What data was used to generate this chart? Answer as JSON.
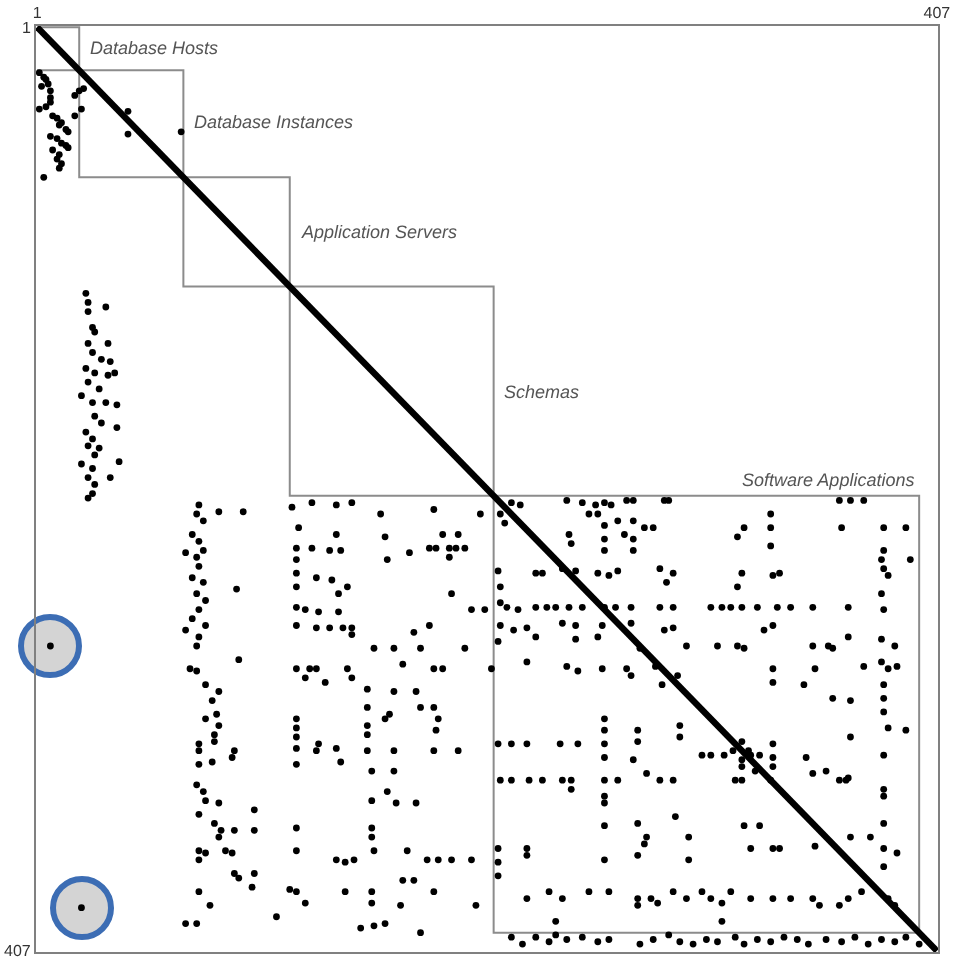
{
  "chart_data": {
    "type": "scatter",
    "marker": "circle",
    "xlim": [
      0.5,
      407.5
    ],
    "ylim": [
      407.5,
      0.5
    ],
    "xticks": [
      1,
      407
    ],
    "yticks": [
      1,
      407
    ],
    "annotations": [
      {
        "text": "Database Hosts",
        "x": 20,
        "y": 10
      },
      {
        "text": "Database Instances",
        "x": 67,
        "y": 43
      },
      {
        "text": "Application Servers",
        "x": 115,
        "y": 91
      },
      {
        "text": "Schemas",
        "x": 207,
        "y": 161
      },
      {
        "text": "Software Applications",
        "x": 399,
        "y": 207
      }
    ],
    "series": [
      {
        "type": "step",
        "marker": "none",
        "color": "#8c8c8c",
        "x": [
          1,
          20,
          67,
          115,
          207,
          399
        ],
        "values": [
          1,
          20,
          67,
          115,
          207,
          399
        ]
      },
      {
        "type": "step",
        "marker": "none",
        "color": "#8c8c8c",
        "x": [
          1,
          20,
          67,
          115,
          207,
          399
        ],
        "values": [
          20,
          67,
          115,
          207,
          399,
          399
        ]
      },
      {
        "type": "line",
        "marker": "none",
        "color": "#000000",
        "x": [
          1,
          407
        ],
        "values": [
          1,
          407
        ]
      },
      {
        "color": "#000000",
        "x": [
          2,
          4,
          5,
          3,
          6,
          7,
          7,
          2,
          5,
          7,
          8,
          10,
          11,
          12,
          14,
          15,
          7,
          10,
          12,
          14,
          15,
          8,
          11,
          10,
          12,
          11,
          4,
          18,
          20,
          22,
          18,
          21,
          42,
          42,
          66,
          23,
          24,
          24,
          32,
          26,
          27,
          24,
          26,
          33,
          30,
          34,
          23,
          27,
          33,
          36,
          24,
          29,
          21,
          26,
          32,
          37,
          27,
          30,
          37,
          23,
          26,
          24,
          29,
          27,
          21,
          26,
          38,
          24,
          27,
          34,
          24,
          26,
          7,
          21
        ],
        "values": [
          21,
          23,
          24,
          27,
          26,
          29,
          32,
          37,
          36,
          34,
          40,
          41,
          44,
          43,
          46,
          47,
          49,
          50,
          52,
          53,
          54,
          55,
          57,
          59,
          61,
          63,
          67,
          31,
          29,
          28,
          40,
          37,
          38,
          48,
          47,
          118,
          122,
          126,
          124,
          133,
          135,
          140,
          144,
          140,
          147,
          148,
          151,
          153,
          154,
          153,
          157,
          160,
          163,
          166,
          166,
          167,
          172,
          175,
          177,
          179,
          182,
          185,
          186,
          189,
          193,
          195,
          192,
          199,
          202,
          199,
          208,
          206,
          273,
          388
        ]
      },
      {
        "color": "#000000",
        "x": [
          74,
          73,
          76,
          71,
          74,
          68,
          73,
          76,
          74,
          71,
          76,
          73,
          77,
          74,
          71,
          68,
          77,
          74,
          73,
          83,
          94,
          91,
          70,
          73,
          77,
          83,
          80,
          77,
          82,
          83,
          81,
          81,
          74,
          74,
          80,
          89,
          90,
          74,
          73,
          76,
          77,
          83,
          74,
          81,
          84,
          83,
          74,
          77,
          86,
          89,
          74,
          90,
          92,
          99,
          99,
          99,
          98,
          74,
          79,
          68,
          73,
          92,
          90
        ],
        "values": [
          211,
          215,
          218,
          224,
          227,
          232,
          234,
          231,
          238,
          243,
          245,
          250,
          253,
          257,
          261,
          266,
          264,
          269,
          273,
          214,
          214,
          248,
          283,
          284,
          290,
          293,
          297,
          305,
          303,
          308,
          312,
          315,
          316,
          319,
          324,
          322,
          319,
          325,
          334,
          337,
          341,
          342,
          347,
          351,
          354,
          357,
          363,
          364,
          363,
          364,
          367,
          373,
          375,
          373,
          345,
          354,
          379,
          381,
          387,
          395,
          395,
          279,
          354
        ]
      },
      {
        "color": "#000000",
        "x": [
          116,
          125,
          136,
          143,
          156,
          180,
          119,
          118,
          125,
          133,
          138,
          136,
          118,
          118,
          127,
          134,
          137,
          141,
          118,
          118,
          122,
          128,
          137,
          118,
          127,
          133,
          139,
          143,
          158,
          159,
          169,
          178,
          184,
          191,
          194,
          187,
          188,
          171,
          178,
          153,
          162,
          174,
          194,
          197,
          143,
          181,
          187,
          190,
          118,
          124,
          122,
          127,
          141,
          143,
          131,
          166,
          180,
          184,
          118,
          118,
          118,
          118,
          118,
          127,
          128,
          136,
          138,
          150,
          150,
          150,
          150,
          158,
          160,
          162,
          174,
          180,
          182,
          172,
          162,
          150,
          181,
          180,
          191,
          152,
          162,
          159,
          163,
          172,
          152,
          118,
          118,
          136,
          140,
          144,
          152,
          152,
          153,
          168,
          177,
          182,
          188,
          166,
          171,
          180,
          115,
          118,
          109,
          140,
          152,
          152,
          165,
          147,
          153,
          158,
          174,
          199,
          197,
          122,
          201,
          203,
          206
        ],
        "values": [
          212,
          210,
          211,
          210,
          215,
          213,
          221,
          230,
          230,
          231,
          231,
          224,
          235,
          241,
          243,
          244,
          250,
          247,
          247,
          256,
          257,
          258,
          258,
          264,
          265,
          265,
          265,
          265,
          225,
          235,
          232,
          230,
          224,
          224,
          230,
          234,
          250,
          267,
          264,
          274,
          274,
          274,
          274,
          257,
          268,
          230,
          230,
          230,
          283,
          283,
          287,
          283,
          283,
          287,
          289,
          281,
          283,
          283,
          305,
          309,
          313,
          318,
          325,
          319,
          316,
          318,
          324,
          300,
          308,
          312,
          319,
          305,
          303,
          319,
          300,
          300,
          305,
          293,
          293,
          292,
          310,
          319,
          319,
          328,
          328,
          337,
          342,
          342,
          341,
          353,
          363,
          367,
          368,
          367,
          353,
          357,
          363,
          363,
          367,
          367,
          367,
          376,
          376,
          381,
          380,
          381,
          392,
          381,
          381,
          386,
          387,
          397,
          396,
          395,
          399,
          387,
          367,
          386,
          215,
          257,
          283
        ]
      },
      {
        "color": "#000000",
        "x": [
          215,
          219,
          240,
          247,
          253,
          257,
          260,
          267,
          270,
          284,
          286,
          363,
          368,
          374,
          210,
          212,
          250,
          254,
          263,
          270,
          257,
          275,
          279,
          241,
          242,
          257,
          257,
          270,
          270,
          266,
          320,
          317,
          332,
          332,
          332,
          364,
          383,
          393,
          383,
          382,
          395,
          209,
          226,
          229,
          238,
          244,
          254,
          259,
          263,
          282,
          288,
          285,
          319,
          317,
          333,
          336,
          383,
          385,
          382,
          210,
          210,
          213,
          218,
          226,
          231,
          235,
          241,
          247,
          257,
          262,
          269,
          282,
          288,
          305,
          310,
          314,
          319,
          326,
          335,
          341,
          351,
          367,
          383,
          210,
          216,
          222,
          238,
          244,
          256,
          269,
          284,
          288,
          329,
          333,
          209,
          226,
          244,
          254,
          273,
          294,
          308,
          317,
          351,
          358,
          367,
          382,
          388
        ],
        "values": [
          210,
          211,
          209,
          210,
          211,
          210,
          211,
          209,
          209,
          209,
          209,
          209,
          209,
          209,
          215,
          219,
          215,
          215,
          218,
          218,
          220,
          221,
          221,
          224,
          228,
          226,
          231,
          226,
          231,
          224,
          221,
          225,
          215,
          221,
          229,
          221,
          221,
          221,
          231,
          235,
          235,
          240,
          241,
          241,
          239,
          240,
          241,
          242,
          240,
          239,
          241,
          245,
          241,
          247,
          242,
          241,
          239,
          242,
          250,
          247,
          254,
          256,
          257,
          256,
          256,
          256,
          256,
          256,
          256,
          256,
          256,
          256,
          256,
          256,
          256,
          256,
          256,
          256,
          256,
          256,
          256,
          256,
          257,
          264,
          266,
          265,
          263,
          264,
          264,
          263,
          266,
          265,
          266,
          264,
          271,
          269,
          270,
          269,
          274,
          273,
          273,
          273,
          273,
          273,
          269,
          270,
          273
        ]
      },
      {
        "color": "#000000",
        "x": [
          222,
          240,
          245,
          256,
          267,
          269,
          320,
          333,
          333,
          347,
          360,
          352,
          374,
          382,
          385,
          389,
          383,
          383,
          383,
          385,
          393,
          383,
          383,
          383,
          360,
          368,
          368,
          357,
          363,
          367,
          209,
          215,
          222,
          237,
          245,
          257,
          257,
          257,
          257,
          272,
          272,
          270,
          291,
          291,
          301,
          305,
          311,
          323,
          327,
          333,
          333,
          333,
          319,
          325,
          348,
          351,
          210,
          215,
          223,
          229,
          238,
          242,
          242,
          257,
          257,
          257,
          263,
          276,
          282,
          288,
          316,
          319,
          332,
          366,
          257,
          272,
          276,
          275,
          272,
          257,
          222,
          222,
          209,
          209,
          209,
          289,
          295,
          295,
          320,
          327,
          323,
          333,
          336,
          352,
          368,
          377,
          383,
          383,
          389,
          383,
          222,
          232,
          238,
          250,
          259,
          272,
          272,
          278,
          281,
          288,
          294,
          301,
          305,
          310,
          314,
          323,
          333,
          341,
          351,
          354,
          363,
          367,
          373,
          385,
          388,
          235,
          310,
          280,
          290,
          283,
          315,
          322,
          319,
          319
        ],
        "values": [
          280,
          282,
          284,
          283,
          283,
          286,
          274,
          283,
          289,
          290,
          274,
          283,
          282,
          280,
          283,
          282,
          290,
          296,
          302,
          309,
          310,
          321,
          336,
          339,
          296,
          297,
          313,
          328,
          332,
          331,
          316,
          316,
          316,
          316,
          316,
          305,
          310,
          316,
          322,
          310,
          315,
          323,
          308,
          313,
          321,
          321,
          321,
          321,
          321,
          316,
          322,
          326,
          326,
          328,
          322,
          329,
          332,
          332,
          332,
          332,
          332,
          332,
          336,
          332,
          339,
          342,
          332,
          329,
          332,
          332,
          332,
          332,
          332,
          332,
          352,
          351,
          357,
          360,
          365,
          367,
          362,
          365,
          362,
          368,
          374,
          348,
          357,
          367,
          352,
          352,
          362,
          362,
          362,
          361,
          357,
          357,
          351,
          362,
          364,
          370,
          384,
          381,
          384,
          381,
          381,
          384,
          387,
          384,
          386,
          381,
          384,
          381,
          384,
          386,
          381,
          384,
          384,
          384,
          384,
          387,
          387,
          384,
          381,
          384,
          387,
          394,
          394,
          282,
          286,
          290,
          319,
          319,
          315,
          323
        ]
      },
      {
        "color": "#000000",
        "x": [
          215,
          220,
          226,
          232,
          235,
          240,
          247,
          254,
          259,
          273,
          279,
          286,
          291,
          297,
          303,
          308,
          316,
          320,
          326,
          332,
          338,
          344,
          349,
          357,
          364,
          370,
          376,
          382,
          388,
          393,
          399
        ],
        "values": [
          401,
          404,
          401,
          403,
          400,
          402,
          401,
          403,
          402,
          404,
          402,
          400,
          403,
          404,
          402,
          403,
          401,
          404,
          402,
          403,
          401,
          402,
          404,
          402,
          403,
          401,
          404,
          402,
          403,
          401,
          404
        ]
      }
    ]
  }
}
